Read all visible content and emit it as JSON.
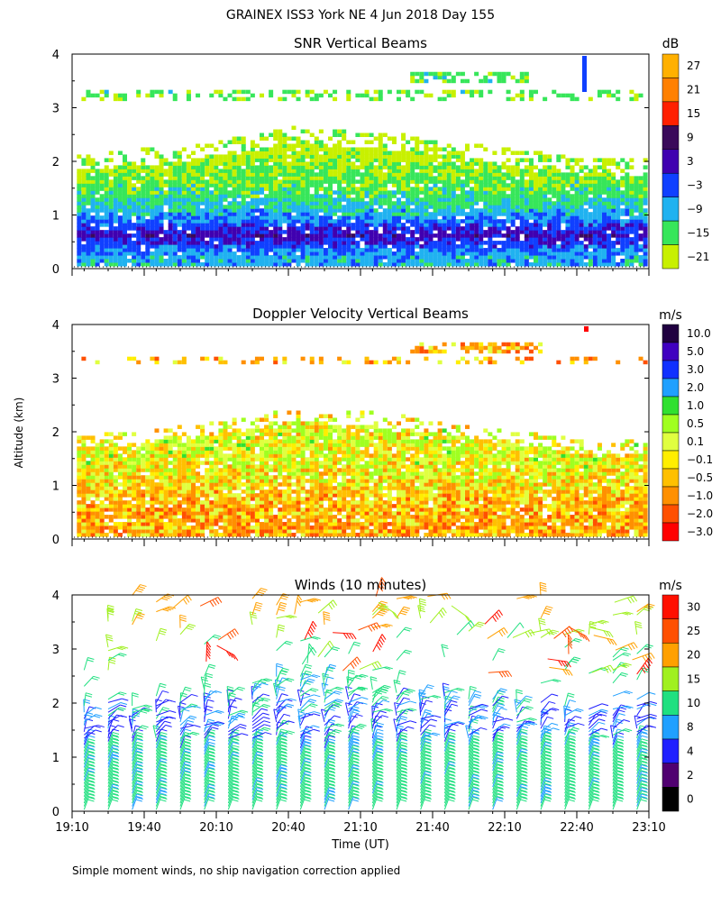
{
  "title": "GRAINEX ISS3 York NE    4 Jun 2018 Day 155",
  "footnote": "Simple moment winds, no ship navigation correction applied",
  "ylabel": "Altitude (km)",
  "xlabel": "Time (UT)",
  "x_ticks": [
    "19:10",
    "19:40",
    "20:10",
    "20:40",
    "21:10",
    "21:40",
    "22:10",
    "22:40",
    "23:10"
  ],
  "y_ticks": [
    "0",
    "1",
    "2",
    "3",
    "4"
  ],
  "colors": {
    "snr": [
      "#c8f000",
      "#37e65a",
      "#20b2f0",
      "#1040ff",
      "#4000b0",
      "#3a0a5a",
      "#ff2000",
      "#ff8000",
      "#ffb000"
    ],
    "vel": [
      "#ff0000",
      "#ff5000",
      "#ff9000",
      "#ffc000",
      "#ffee00",
      "#e0ff40",
      "#a0ff20",
      "#30e030",
      "#20a0ff",
      "#1030ff",
      "#4000c0",
      "#200040"
    ],
    "wind": [
      "#000000",
      "#500070",
      "#2020ff",
      "#20a0ff",
      "#20e080",
      "#a0f020",
      "#ffa000",
      "#ff5000",
      "#ff1000"
    ]
  },
  "chart_data": [
    {
      "type": "heatmap",
      "title": "SNR Vertical Beams",
      "xlabel": "Time (UT)",
      "ylabel": "Altitude (km)",
      "xlim": [
        "19:10",
        "23:10"
      ],
      "ylim": [
        0,
        4
      ],
      "colorbar_unit": "dB",
      "colorbar_levels": [
        "27",
        "21",
        "15",
        "9",
        "3",
        "−3",
        "−9",
        "−15",
        "−21"
      ],
      "profile_by_altitude_km": [
        {
          "altitude": 0.2,
          "snr_db": -9
        },
        {
          "altitude": 0.6,
          "snr_db": 3
        },
        {
          "altitude": 1.0,
          "snr_db": -9
        },
        {
          "altitude": 1.4,
          "snr_db": -15
        },
        {
          "altitude": 1.8,
          "snr_db": -18
        },
        {
          "altitude": 2.2,
          "snr_db": -21
        },
        {
          "altitude": 3.5,
          "snr_db": -15
        }
      ],
      "boundary_layer_top_km": [
        {
          "time": "19:10",
          "top": 1.85
        },
        {
          "time": "19:40",
          "top": 1.95
        },
        {
          "time": "20:10",
          "top": 2.1
        },
        {
          "time": "20:40",
          "top": 2.35
        },
        {
          "time": "21:10",
          "top": 2.3
        },
        {
          "time": "21:40",
          "top": 2.15
        },
        {
          "time": "22:10",
          "top": 1.95
        },
        {
          "time": "22:40",
          "top": 1.8
        },
        {
          "time": "23:10",
          "top": 1.75
        }
      ]
    },
    {
      "type": "heatmap",
      "title": "Doppler Velocity Vertical Beams",
      "xlabel": "Time (UT)",
      "ylabel": "Altitude (km)",
      "xlim": [
        "19:10",
        "23:10"
      ],
      "ylim": [
        0,
        4
      ],
      "colorbar_unit": "m/s",
      "colorbar_levels": [
        "10.0",
        "5.0",
        "3.0",
        "2.0",
        "1.0",
        "0.5",
        "0.1",
        "−0.1",
        "−0.5",
        "−1.0",
        "−2.0",
        "−3.0"
      ],
      "profile_by_altitude_km": [
        {
          "altitude": 0.3,
          "velocity_ms": -0.5
        },
        {
          "altitude": 0.8,
          "velocity_ms": -0.3
        },
        {
          "altitude": 1.3,
          "velocity_ms": 0.2
        },
        {
          "altitude": 1.8,
          "velocity_ms": 0.3
        },
        {
          "altitude": 3.6,
          "velocity_ms": -0.5
        }
      ]
    },
    {
      "type": "scatter",
      "title": "Winds (10 minutes)",
      "xlabel": "Time (UT)",
      "ylabel": "Altitude (km)",
      "xlim": [
        "19:10",
        "23:10"
      ],
      "ylim": [
        0,
        4
      ],
      "colorbar_unit": "m/s",
      "colorbar_levels": [
        "30",
        "25",
        "20",
        "15",
        "10",
        "8",
        "4",
        "2",
        "0"
      ],
      "profile_times": [
        "19:15",
        "19:25",
        "19:35",
        "19:45",
        "19:55",
        "20:05",
        "20:15",
        "20:25",
        "20:35",
        "20:45",
        "20:55",
        "21:05",
        "21:15",
        "21:25",
        "21:35",
        "21:45",
        "21:55",
        "22:05",
        "22:15",
        "22:25",
        "22:35",
        "22:45",
        "22:55",
        "23:05"
      ],
      "speed_by_altitude_km": [
        {
          "altitude": 0.3,
          "speed_ms": 12
        },
        {
          "altitude": 1.0,
          "speed_ms": 12
        },
        {
          "altitude": 1.6,
          "speed_ms": 7
        },
        {
          "altitude": 2.2,
          "speed_ms": 11
        },
        {
          "altitude": 3.0,
          "speed_ms": 14
        },
        {
          "altitude": 3.8,
          "speed_ms": 22
        }
      ]
    }
  ]
}
